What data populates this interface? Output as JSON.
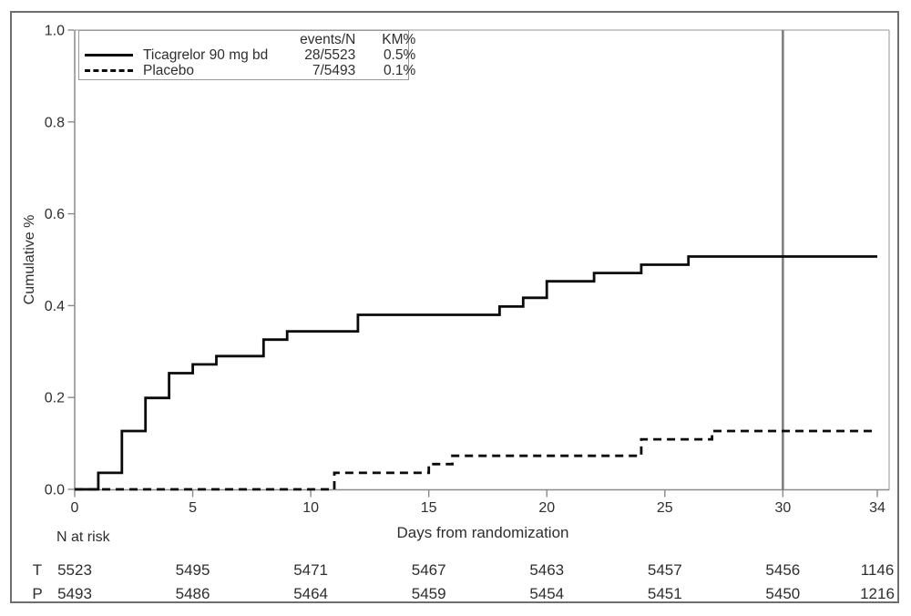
{
  "legend": {
    "events_col_header": "events/N",
    "km_col_header": "KM%",
    "entries": [
      {
        "label": "Ticagrelor 90 mg bd",
        "events_n": "28/5523",
        "km_pct": "0.5%",
        "line_style": "solid"
      },
      {
        "label": "Placebo",
        "events_n": "7/5493",
        "km_pct": "0.1%",
        "line_style": "dashed"
      }
    ]
  },
  "axes": {
    "y_label": "Cumulative %",
    "x_label": "Days from randomization",
    "y_tick_labels": [
      "0.0",
      "0.2",
      "0.4",
      "0.6",
      "0.8",
      "1.0"
    ],
    "y_tick_values": [
      0,
      0.2,
      0.4,
      0.6,
      0.8,
      1
    ],
    "x_tick_labels": [
      "0",
      "5",
      "10",
      "15",
      "20",
      "25",
      "30",
      "34"
    ],
    "x_tick_values": [
      0,
      5,
      10,
      15,
      20,
      25,
      30,
      34
    ]
  },
  "at_risk": {
    "title": "N at risk",
    "days": [
      0,
      5,
      10,
      15,
      20,
      25,
      30,
      34
    ],
    "rows": [
      {
        "label": "T",
        "values": [
          "5523",
          "5495",
          "5471",
          "5467",
          "5463",
          "5457",
          "5456",
          "1146"
        ]
      },
      {
        "label": "P",
        "values": [
          "5493",
          "5486",
          "5464",
          "5459",
          "5454",
          "5451",
          "5450",
          "1216"
        ]
      }
    ]
  },
  "chart_data": {
    "type": "line",
    "variant": "kaplan-meier-cumulative-incidence-step",
    "title": "",
    "xlabel": "Days from randomization",
    "ylabel": "Cumulative %",
    "xlim": [
      0,
      34
    ],
    "ylim": [
      0,
      1
    ],
    "x_ticks": [
      0,
      5,
      10,
      15,
      20,
      25,
      30,
      34
    ],
    "y_ticks": [
      0,
      0.2,
      0.4,
      0.6,
      0.8,
      1
    ],
    "grid": false,
    "legend_position": "top-left",
    "reference_line_x": 30,
    "series": [
      {
        "name": "Ticagrelor 90 mg bd",
        "line": "solid",
        "color": "#0a0a0a",
        "events_n": "28/5523",
        "km_pct": "0.5%",
        "step_points": [
          [
            0,
            0
          ],
          [
            1,
            0.036
          ],
          [
            2,
            0.127
          ],
          [
            3,
            0.199
          ],
          [
            4,
            0.253
          ],
          [
            5,
            0.272
          ],
          [
            6,
            0.29
          ],
          [
            8,
            0.326
          ],
          [
            9,
            0.344
          ],
          [
            12,
            0.38
          ],
          [
            18,
            0.398
          ],
          [
            19,
            0.417
          ],
          [
            20,
            0.453
          ],
          [
            22,
            0.471
          ],
          [
            24,
            0.489
          ],
          [
            26,
            0.507
          ],
          [
            34,
            0.507
          ]
        ]
      },
      {
        "name": "Placebo",
        "line": "dashed",
        "color": "#0a0a0a",
        "events_n": "7/5493",
        "km_pct": "0.1%",
        "step_points": [
          [
            0,
            0
          ],
          [
            11,
            0.036
          ],
          [
            15,
            0.055
          ],
          [
            16,
            0.073
          ],
          [
            24,
            0.109
          ],
          [
            27,
            0.127
          ],
          [
            34,
            0.127
          ]
        ]
      }
    ],
    "n_at_risk": {
      "days": [
        0,
        5,
        10,
        15,
        20,
        25,
        30,
        34
      ],
      "Ticagrelor": [
        5523,
        5495,
        5471,
        5467,
        5463,
        5457,
        5456,
        1146
      ],
      "Placebo": [
        5493,
        5486,
        5464,
        5459,
        5454,
        5451,
        5450,
        1216
      ]
    }
  },
  "colors": {
    "curve": "#0a0a0a",
    "axis": "#8a8a8a",
    "frame": "#ababab",
    "reference_line": "#7f7f7f",
    "text": "#2e2e2e",
    "legend_border": "#999999",
    "figure_border": "#6e6e6e",
    "background": "#ffffff"
  }
}
